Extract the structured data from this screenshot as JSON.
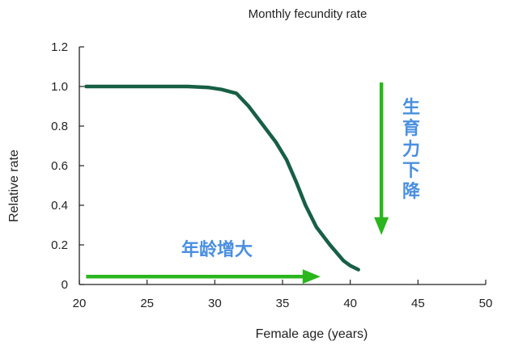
{
  "chart_data": {
    "type": "line",
    "title": "Monthly fecundity rate",
    "xlabel": "Female age (years)",
    "ylabel": "Relative rate",
    "xlim": [
      20,
      50
    ],
    "ylim": [
      0,
      1.2
    ],
    "xticks": [
      20,
      25,
      30,
      35,
      40,
      45,
      50
    ],
    "yticks": [
      0,
      0.2,
      0.4,
      0.6,
      0.8,
      1.0,
      1.2
    ],
    "ytick_labels": [
      "0",
      "0.2",
      "0.4",
      "0.6",
      "0.8",
      "1.0",
      "1.2"
    ],
    "grid": false,
    "series": [
      {
        "color": "#175f45",
        "x": [
          20.5,
          25,
          28,
          29.5,
          30.5,
          31.6,
          32.5,
          33.5,
          34.5,
          35.3,
          36,
          36.7,
          37.5,
          38.5,
          39.5,
          40.0,
          40.6
        ],
        "y": [
          1.0,
          1.0,
          1.0,
          0.995,
          0.985,
          0.965,
          0.9,
          0.81,
          0.72,
          0.63,
          0.52,
          0.4,
          0.29,
          0.2,
          0.12,
          0.095,
          0.075
        ]
      }
    ],
    "annotations": {
      "age_arrow": {
        "label": "年龄增大",
        "color": "#2bb61e",
        "text_color": "#4a8fe0",
        "from_x": 20.5,
        "to_x": 37.8,
        "y": 0.04
      },
      "fertility_arrow": {
        "label": "生育力下降",
        "color": "#2bb61e",
        "text_color": "#4a8fe0",
        "x": 42.3,
        "from_y": 1.02,
        "to_y": 0.25
      }
    }
  }
}
